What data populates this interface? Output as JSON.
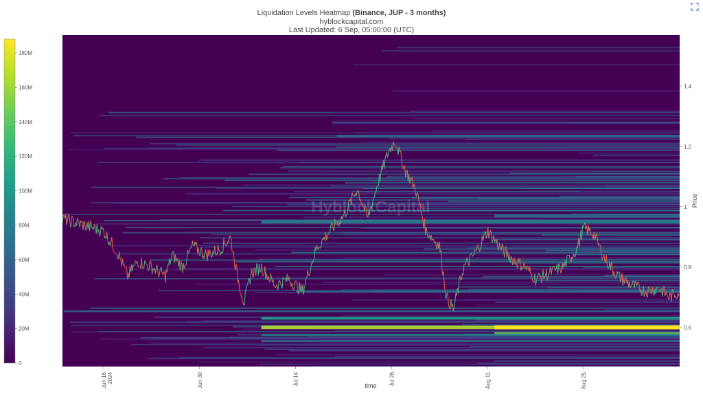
{
  "chart_data": {
    "type": "heatmap",
    "title_main": "Liquidation Levels Heatmap",
    "title_bold": "(Binance, JUP - 3 months)",
    "subtitle": "hyblockcapital.com",
    "updated": "Last Updated: 6 Sep, 05:00:00 (UTC)",
    "xlabel": "time",
    "ylabel": "Price",
    "watermark": "HyblockCapital",
    "x_ticks": [
      {
        "label": "Jun 16",
        "sub": "2024",
        "day": 6
      },
      {
        "label": "Jun 30",
        "sub": "",
        "day": 20
      },
      {
        "label": "Jul 14",
        "sub": "",
        "day": 34
      },
      {
        "label": "Jul 28",
        "sub": "",
        "day": 48
      },
      {
        "label": "Aug 11",
        "sub": "",
        "day": 62
      },
      {
        "label": "Aug 25",
        "sub": "",
        "day": 76
      }
    ],
    "x_range_days": [
      0,
      90
    ],
    "y_ticks": [
      0.6,
      0.8,
      1,
      1.2,
      1.4
    ],
    "ylim": [
      0.47,
      1.57
    ],
    "colorbar": {
      "ticks": [
        "0",
        "20M",
        "40M",
        "60M",
        "80M",
        "100M",
        "120M",
        "140M",
        "160M",
        "180M"
      ],
      "max": 188,
      "colors": [
        "#440154",
        "#482878",
        "#3e4989",
        "#31688e",
        "#26828e",
        "#1f9e89",
        "#35b779",
        "#6ece58",
        "#b5de2b",
        "#fde725"
      ]
    },
    "price_series": {
      "day": [
        0,
        3,
        6,
        8,
        9.5,
        11,
        13,
        15,
        16,
        17.5,
        19,
        21,
        23,
        24.5,
        25.5,
        26.5,
        27.5,
        29,
        31,
        33,
        35,
        37,
        39,
        41,
        43,
        44.5,
        46,
        47.5,
        48.5,
        50,
        51.5,
        53,
        55,
        56,
        57,
        58.5,
        60,
        62,
        64,
        66,
        67.5,
        69,
        71,
        73,
        75,
        76,
        77.5,
        79,
        81,
        83,
        85,
        87,
        88.5,
        90
      ],
      "price": [
        0.96,
        0.94,
        0.92,
        0.85,
        0.77,
        0.82,
        0.8,
        0.77,
        0.84,
        0.8,
        0.87,
        0.84,
        0.86,
        0.9,
        0.77,
        0.68,
        0.78,
        0.8,
        0.74,
        0.76,
        0.72,
        0.86,
        0.92,
        0.97,
        1.06,
        0.96,
        1.08,
        1.18,
        1.22,
        1.12,
        1.06,
        0.92,
        0.87,
        0.7,
        0.66,
        0.8,
        0.84,
        0.92,
        0.86,
        0.82,
        0.8,
        0.76,
        0.78,
        0.8,
        0.86,
        0.93,
        0.91,
        0.83,
        0.77,
        0.74,
        0.72,
        0.73,
        0.7,
        0.72
      ]
    }
  },
  "ui": {
    "corner_icon": "expand-icon"
  }
}
